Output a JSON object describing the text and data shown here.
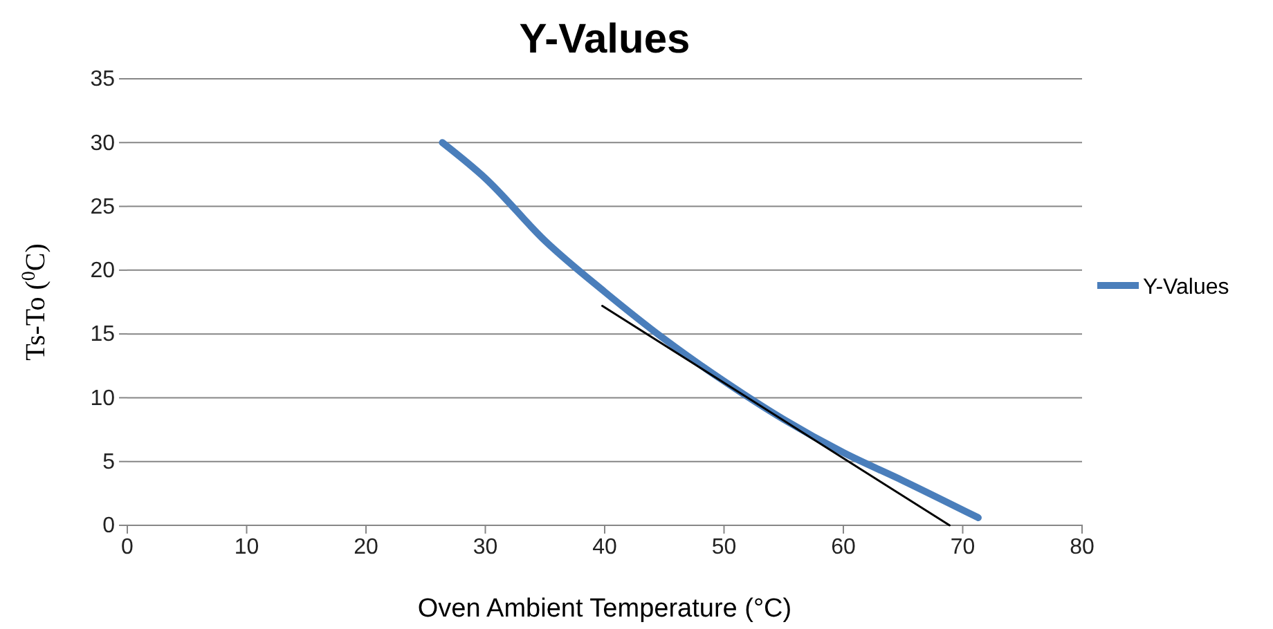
{
  "chart_data": {
    "type": "line",
    "title": "Y-Values",
    "xlabel": "Oven Ambient Temperature (°C)",
    "ylabel": "Ts-To ($^{0}$C)",
    "xlim": [
      0,
      80
    ],
    "xticks": [
      0,
      10,
      20,
      30,
      40,
      50,
      60,
      70,
      80
    ],
    "ylim": [
      0,
      35
    ],
    "yticks": [
      0,
      5,
      10,
      15,
      20,
      25,
      30,
      35
    ],
    "grid": "y",
    "legend": "right",
    "marker": "none",
    "series": [
      {
        "name": "Y-Values",
        "color": "#4a7ebb",
        "x": [
          26.4,
          30,
          35,
          40,
          45,
          50,
          55,
          60,
          65,
          71.3
        ],
        "values": [
          30,
          27.2,
          22.3,
          18.3,
          14.6,
          11.3,
          8.3,
          5.7,
          3.5,
          0.6
        ]
      },
      {
        "color": "#000000",
        "x": [
          39.8,
          68.9
        ],
        "values": [
          17.2,
          0
        ]
      }
    ]
  }
}
